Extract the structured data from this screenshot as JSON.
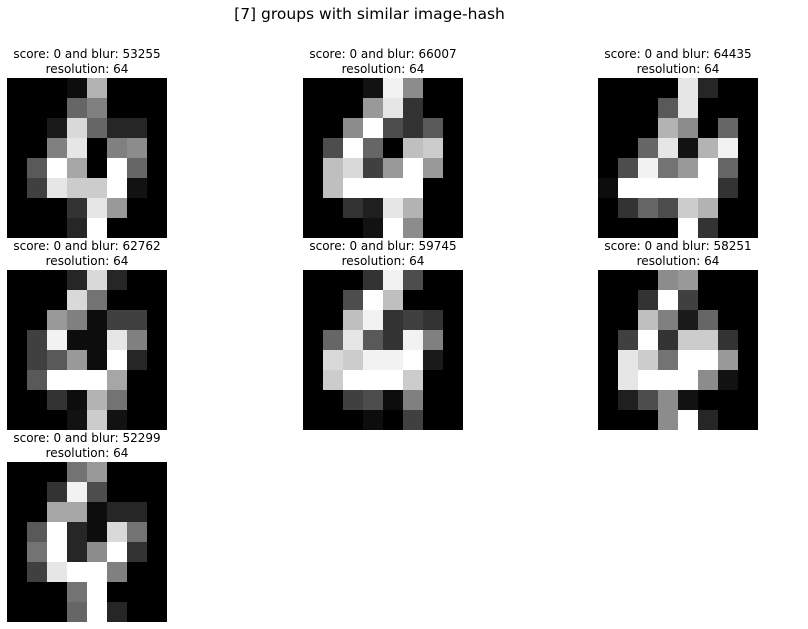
{
  "figure": {
    "title": "[7] groups with similar image-hash"
  },
  "chart_data": [
    {
      "type": "heatmap",
      "colormap": "gray",
      "title": "score: 0 and blur: 53255",
      "subtitle": "resolution: 64",
      "values": [
        [
          0,
          0,
          0,
          0.05,
          0.7,
          0,
          0,
          0
        ],
        [
          0,
          0,
          0,
          0.4,
          0.5,
          0,
          0,
          0
        ],
        [
          0,
          0,
          0.1,
          0.85,
          0.4,
          0.15,
          0.15,
          0
        ],
        [
          0,
          0,
          0.5,
          0.9,
          0,
          0.5,
          0.55,
          0
        ],
        [
          0,
          0.35,
          1,
          0.65,
          0,
          1,
          0.4,
          0
        ],
        [
          0,
          0.25,
          0.9,
          0.8,
          0.8,
          1,
          0.07,
          0
        ],
        [
          0,
          0,
          0,
          0.2,
          0.9,
          0.6,
          0,
          0
        ],
        [
          0,
          0,
          0,
          0.15,
          1,
          0,
          0,
          0
        ]
      ]
    },
    {
      "type": "heatmap",
      "colormap": "gray",
      "title": "score: 0 and blur: 66007",
      "subtitle": "resolution: 64",
      "values": [
        [
          0,
          0,
          0,
          0.07,
          0.95,
          0.55,
          0,
          0
        ],
        [
          0,
          0,
          0,
          0.6,
          0.9,
          0.2,
          0,
          0
        ],
        [
          0,
          0,
          0.55,
          1,
          0.3,
          0.2,
          0.35,
          0
        ],
        [
          0,
          0.3,
          1,
          0.4,
          0,
          0.75,
          0.8,
          0
        ],
        [
          0,
          0.75,
          0.85,
          0.25,
          0.6,
          1,
          0.6,
          0
        ],
        [
          0,
          0.75,
          1,
          1,
          1,
          1,
          0,
          0
        ],
        [
          0,
          0,
          0.2,
          0.12,
          0.9,
          0.7,
          0,
          0
        ],
        [
          0,
          0,
          0,
          0.07,
          1,
          0.55,
          0,
          0
        ]
      ]
    },
    {
      "type": "heatmap",
      "colormap": "gray",
      "title": "score: 0 and blur: 64435",
      "subtitle": "resolution: 64",
      "values": [
        [
          0,
          0,
          0,
          0,
          0.9,
          0.15,
          0,
          0
        ],
        [
          0,
          0,
          0,
          0.35,
          0.9,
          0,
          0,
          0
        ],
        [
          0,
          0,
          0,
          0.7,
          0.55,
          0,
          0.4,
          0
        ],
        [
          0,
          0,
          0.4,
          0.9,
          0.07,
          0.7,
          0.95,
          0
        ],
        [
          0,
          0.3,
          0.95,
          0.45,
          0.6,
          1,
          0.4,
          0
        ],
        [
          0.05,
          1,
          1,
          1,
          1,
          1,
          0.2,
          0
        ],
        [
          0,
          0.2,
          0.4,
          0.3,
          0.8,
          0.7,
          0,
          0
        ],
        [
          0,
          0,
          0,
          0,
          1,
          0.2,
          0,
          0
        ]
      ]
    },
    {
      "type": "heatmap",
      "colormap": "gray",
      "title": "score: 0 and blur: 62762",
      "subtitle": "resolution: 64",
      "values": [
        [
          0,
          0,
          0,
          0.15,
          0.85,
          0.15,
          0,
          0
        ],
        [
          0,
          0,
          0,
          0.85,
          0.45,
          0,
          0,
          0
        ],
        [
          0,
          0,
          0.6,
          0.5,
          0.05,
          0.25,
          0.25,
          0
        ],
        [
          0,
          0.25,
          0.95,
          0.05,
          0.05,
          0.9,
          0.5,
          0
        ],
        [
          0,
          0.25,
          0.35,
          0.6,
          0.05,
          1,
          0.15,
          0
        ],
        [
          0,
          0.35,
          1,
          1,
          1,
          0.65,
          0,
          0
        ],
        [
          0,
          0,
          0.2,
          0.05,
          0.7,
          0.45,
          0,
          0
        ],
        [
          0,
          0,
          0,
          0.07,
          0.8,
          0.07,
          0,
          0
        ]
      ]
    },
    {
      "type": "heatmap",
      "colormap": "gray",
      "title": "score: 0 and blur: 59745",
      "subtitle": "resolution: 64",
      "values": [
        [
          0,
          0,
          0,
          0.2,
          0.95,
          0.3,
          0,
          0
        ],
        [
          0,
          0,
          0.3,
          1,
          0.75,
          0,
          0,
          0
        ],
        [
          0,
          0,
          0.75,
          0.95,
          0.2,
          0.25,
          0.2,
          0
        ],
        [
          0,
          0.4,
          0.9,
          0.35,
          0.2,
          0.95,
          0.5,
          0
        ],
        [
          0,
          0.85,
          0.8,
          0.95,
          0.95,
          1,
          0.1,
          0
        ],
        [
          0,
          0.8,
          1,
          1,
          1,
          0.8,
          0,
          0
        ],
        [
          0,
          0,
          0.25,
          0.3,
          0.05,
          0.5,
          0,
          0
        ],
        [
          0,
          0,
          0,
          0.05,
          0,
          0.25,
          0,
          0
        ]
      ]
    },
    {
      "type": "heatmap",
      "colormap": "gray",
      "title": "score: 0 and blur: 58251",
      "subtitle": "resolution: 64",
      "values": [
        [
          0,
          0,
          0,
          0.55,
          0.6,
          0,
          0,
          0
        ],
        [
          0,
          0,
          0.2,
          1,
          0.25,
          0,
          0,
          0
        ],
        [
          0,
          0,
          0.75,
          0.5,
          0.1,
          0.4,
          0,
          0
        ],
        [
          0,
          0.25,
          1,
          0.2,
          0.8,
          0.8,
          0.2,
          0
        ],
        [
          0,
          0.9,
          0.8,
          0.45,
          1,
          1,
          0.6,
          0
        ],
        [
          0,
          0.9,
          1,
          1,
          1,
          0.55,
          0.07,
          0
        ],
        [
          0,
          0.12,
          0.3,
          0.55,
          0.07,
          0,
          0,
          0
        ],
        [
          0,
          0,
          0,
          0.55,
          1,
          0.15,
          0,
          0
        ]
      ]
    },
    {
      "type": "heatmap",
      "colormap": "gray",
      "title": "score: 0 and blur: 52299",
      "subtitle": "resolution: 64",
      "values": [
        [
          0,
          0,
          0,
          0.45,
          0.6,
          0,
          0,
          0
        ],
        [
          0,
          0,
          0.2,
          0.95,
          0.3,
          0,
          0,
          0
        ],
        [
          0,
          0,
          0.65,
          0.65,
          0.05,
          0.15,
          0.15,
          0
        ],
        [
          0,
          0.35,
          1,
          0.15,
          0.05,
          0.85,
          0.45,
          0
        ],
        [
          0,
          0.45,
          1,
          0.15,
          0.55,
          1,
          0.2,
          0
        ],
        [
          0,
          0.25,
          0.9,
          1,
          1,
          0.5,
          0,
          0
        ],
        [
          0,
          0,
          0,
          0.45,
          1,
          0,
          0,
          0
        ],
        [
          0,
          0,
          0,
          0.4,
          1,
          0.15,
          0,
          0
        ]
      ]
    }
  ]
}
